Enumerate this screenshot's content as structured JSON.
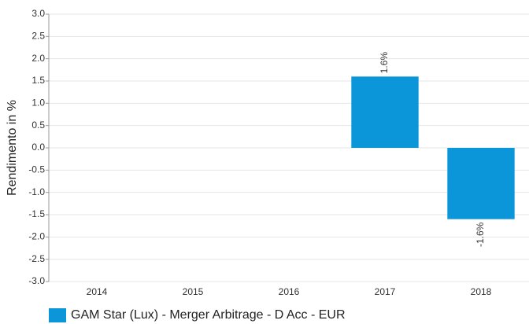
{
  "chart_data": {
    "type": "bar",
    "y_label": "Rendimento in %",
    "categories": [
      "2014",
      "2015",
      "2016",
      "2017",
      "2018"
    ],
    "series": [
      {
        "name": "GAM Star (Lux) - Merger Arbitrage - D Acc - EUR",
        "color": "#0a96d8",
        "values": [
          null,
          null,
          null,
          1.6,
          -1.6
        ],
        "value_labels": [
          null,
          null,
          null,
          "1.6%",
          "-1.6%"
        ]
      }
    ],
    "ylim": [
      -3,
      3
    ],
    "yticks": [
      {
        "value": 3,
        "label": "3.0"
      },
      2.5,
      {
        "value": 2,
        "label": "2.0"
      },
      1.5,
      {
        "value": 1,
        "label": "1.0"
      },
      0.5,
      {
        "value": 0,
        "label": "0.0"
      },
      -0.5,
      {
        "value": -1,
        "label": "-1.0"
      },
      -1.5,
      {
        "value": -2,
        "label": "-2.0"
      },
      -2.5,
      {
        "value": -3,
        "label": "-3.0"
      }
    ],
    "grid": true,
    "legend": "bottom-left"
  }
}
